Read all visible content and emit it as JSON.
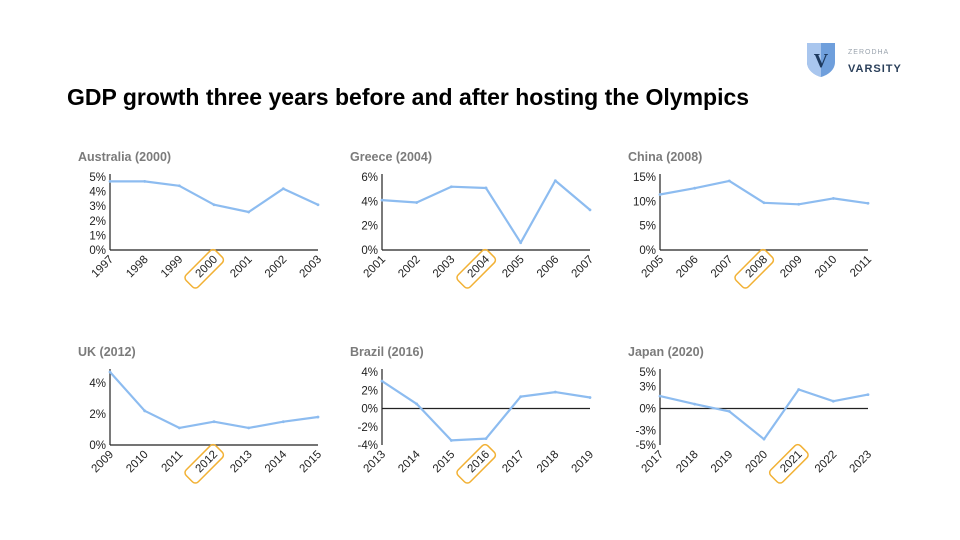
{
  "slide": {
    "title": "GDP growth three years before and after hosting the Olympics"
  },
  "logo": {
    "brand_small": "ZERODHA",
    "brand_main": "VARSITY",
    "letter": "V"
  },
  "colors": {
    "line": "#8dbcf0",
    "highlight": "#f2b134",
    "axis": "#222222",
    "title_gray": "#7b7b7b",
    "logo_blue": "#3c6fb6"
  },
  "chart_data": [
    {
      "type": "line",
      "title": "Australia (2000)",
      "x": [
        "1997",
        "1998",
        "1999",
        "2000",
        "2001",
        "2002",
        "2003"
      ],
      "values": [
        4.7,
        4.7,
        4.4,
        3.1,
        2.6,
        4.2,
        3.1
      ],
      "yticks": [
        "0%",
        "1%",
        "2%",
        "3%",
        "4%",
        "5%"
      ],
      "ylim": [
        0,
        5
      ],
      "host_year": "2000"
    },
    {
      "type": "line",
      "title": "Greece (2004)",
      "x": [
        "2001",
        "2002",
        "2003",
        "2004",
        "2005",
        "2006",
        "2007"
      ],
      "values": [
        4.1,
        3.9,
        5.2,
        5.1,
        0.6,
        5.7,
        3.3
      ],
      "yticks": [
        "0%",
        "2%",
        "4%",
        "6%"
      ],
      "ylim": [
        0,
        6
      ],
      "host_year": "2004"
    },
    {
      "type": "line",
      "title": "China (2008)",
      "x": [
        "2005",
        "2006",
        "2007",
        "2008",
        "2009",
        "2010",
        "2011"
      ],
      "values": [
        11.4,
        12.7,
        14.2,
        9.7,
        9.4,
        10.6,
        9.6
      ],
      "yticks": [
        "0%",
        "5%",
        "10%",
        "15%"
      ],
      "ylim": [
        0,
        15
      ],
      "host_year": "2008"
    },
    {
      "type": "line",
      "title": "UK (2012)",
      "x": [
        "2009",
        "2010",
        "2011",
        "2012",
        "2013",
        "2014",
        "2015"
      ],
      "values": [
        4.7,
        2.2,
        1.1,
        1.5,
        1.1,
        1.5,
        1.8
      ],
      "yticks": [
        "0%",
        "2%",
        "4%"
      ],
      "ylim": [
        0,
        4.7
      ],
      "host_year": "2012"
    },
    {
      "type": "line",
      "title": "Brazil (2016)",
      "x": [
        "2013",
        "2014",
        "2015",
        "2016",
        "2017",
        "2018",
        "2019"
      ],
      "values": [
        3.0,
        0.5,
        -3.5,
        -3.3,
        1.3,
        1.8,
        1.2
      ],
      "yticks": [
        "-4%",
        "-2%",
        "0%",
        "2%",
        "4%"
      ],
      "ylim": [
        -4,
        4
      ],
      "host_year": "2016"
    },
    {
      "type": "line",
      "title": "Japan (2020)",
      "x": [
        "2017",
        "2018",
        "2019",
        "2020",
        "2021",
        "2022",
        "2023"
      ],
      "values": [
        1.7,
        0.6,
        -0.4,
        -4.2,
        2.6,
        1.0,
        1.9
      ],
      "yticks": [
        "-5%",
        "-3%",
        "0%",
        "3%",
        "5%"
      ],
      "ylim": [
        -5,
        5
      ],
      "host_year": "2021"
    }
  ]
}
